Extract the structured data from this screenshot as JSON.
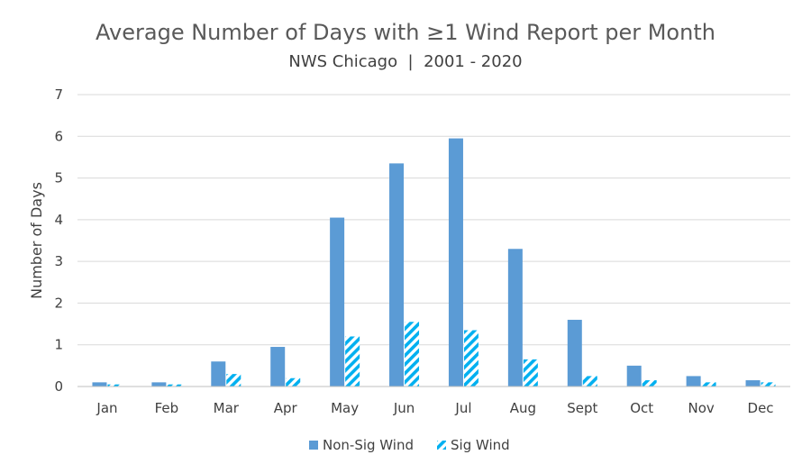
{
  "chart_data": {
    "type": "bar",
    "title": "Average Number of Days with ≥1 Wind Report per Month",
    "subtitle": "NWS Chicago  |  2001 - 2020",
    "xlabel": "",
    "ylabel": "Number of Days",
    "ylim": [
      0,
      7
    ],
    "yticks": [
      "0",
      "1",
      "2",
      "3",
      "4",
      "5",
      "6",
      "7"
    ],
    "categories": [
      "Jan",
      "Feb",
      "Mar",
      "Apr",
      "May",
      "Jun",
      "Jul",
      "Aug",
      "Sept",
      "Oct",
      "Nov",
      "Dec"
    ],
    "series": [
      {
        "name": "Non-Sig Wind",
        "color": "#5b9bd5",
        "pattern": "solid",
        "values": [
          0.1,
          0.1,
          0.6,
          0.95,
          4.05,
          5.35,
          5.95,
          3.3,
          1.6,
          0.5,
          0.25,
          0.15
        ]
      },
      {
        "name": "Sig Wind",
        "color": "#00b0f0",
        "pattern": "diagonal-stripes",
        "values": [
          0.05,
          0.05,
          0.3,
          0.2,
          1.2,
          1.55,
          1.35,
          0.65,
          0.25,
          0.15,
          0.1,
          0.1
        ]
      }
    ],
    "grid": true,
    "legend_position": "bottom-center"
  }
}
